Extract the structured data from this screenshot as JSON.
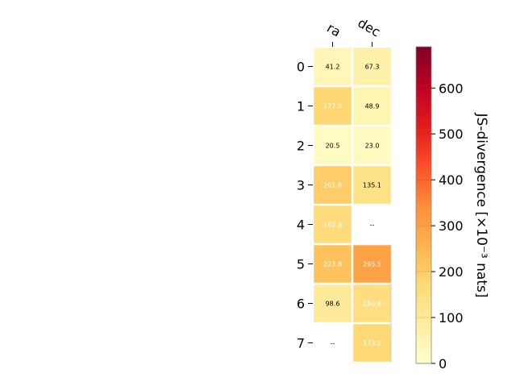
{
  "chart_data": {
    "type": "heatmap",
    "columns": [
      "ra",
      "dec"
    ],
    "rows": [
      "0",
      "1",
      "2",
      "3",
      "4",
      "5",
      "6",
      "7"
    ],
    "values": [
      [
        41.2,
        67.3
      ],
      [
        177.0,
        48.9
      ],
      [
        20.5,
        23.0
      ],
      [
        201.8,
        135.1
      ],
      [
        162.3,
        null
      ],
      [
        223.8,
        295.5
      ],
      [
        98.6,
        150.8
      ],
      [
        null,
        173.2
      ]
    ],
    "cell_labels": [
      [
        "41.2",
        "67.3"
      ],
      [
        "177.0",
        "48.9"
      ],
      [
        "20.5",
        "23.0"
      ],
      [
        "201.8",
        "135.1"
      ],
      [
        "162.3",
        "--"
      ],
      [
        "223.8",
        "295.5"
      ],
      [
        "98.6",
        "150.8"
      ],
      [
        "--",
        "173.2"
      ]
    ],
    "colorbar": {
      "label": "JS-divergence [×10⁻³ nats]",
      "range": [
        0,
        690
      ],
      "ticks": [
        0,
        100,
        200,
        300,
        400,
        500,
        600
      ],
      "colormap": "YlOrRd"
    }
  }
}
